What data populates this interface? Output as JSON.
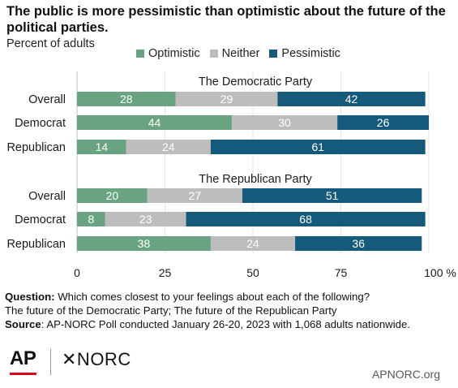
{
  "header": {
    "title": "The public is more pessimistic than optimistic about the future of the political parties.",
    "subtitle": "Percent of adults"
  },
  "legend": {
    "items": [
      {
        "label": "Optimistic",
        "color": "#6aa381"
      },
      {
        "label": "Neither",
        "color": "#bdbdbd"
      },
      {
        "label": "Pessimistic",
        "color": "#155a7a"
      }
    ]
  },
  "chart_data": {
    "type": "bar",
    "orientation": "horizontal",
    "stacked": true,
    "xlim": [
      0,
      100
    ],
    "x_ticks": [
      {
        "value": 0,
        "label": "0"
      },
      {
        "value": 25,
        "label": "25"
      },
      {
        "value": 50,
        "label": "50"
      },
      {
        "value": 75,
        "label": "75"
      },
      {
        "value": 100,
        "label": "100 %"
      }
    ],
    "grid": true,
    "legend_position": "top",
    "series_names": [
      "Optimistic",
      "Neither",
      "Pessimistic"
    ],
    "groups": [
      {
        "title": "The Democratic Party",
        "rows": [
          {
            "label": "Overall",
            "values": [
              28,
              29,
              42
            ]
          },
          {
            "label": "Democrat",
            "values": [
              44,
              30,
              26
            ]
          },
          {
            "label": "Republican",
            "values": [
              14,
              24,
              61
            ]
          }
        ]
      },
      {
        "title": "The Republican Party",
        "rows": [
          {
            "label": "Overall",
            "values": [
              20,
              27,
              51
            ]
          },
          {
            "label": "Democrat",
            "values": [
              8,
              23,
              68
            ]
          },
          {
            "label": "Republican",
            "values": [
              38,
              24,
              36
            ]
          }
        ]
      }
    ]
  },
  "notes": {
    "question_label": "Question:",
    "question_text": "Which comes closest to your feelings about each of the following?",
    "question_line2": "The future of the Democratic Party; The future of the Republican Party",
    "source_label": "Source",
    "source_text": ": AP-NORC Poll conducted January 26-20, 2023 with 1,068 adults nationwide."
  },
  "footer": {
    "ap_logo": "AP",
    "norc_logo": "✕NORC",
    "site": "APNORC.org"
  }
}
